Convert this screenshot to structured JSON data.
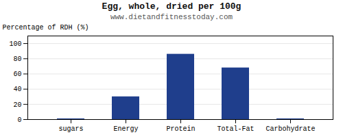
{
  "chart_data": {
    "type": "bar",
    "title": "Egg, whole, dried per 100g",
    "subtitle": "www.dietandfitnesstoday.com",
    "categories": [
      "sugars",
      "Energy",
      "Protein",
      "Total-Fat",
      "Carbohydrate"
    ],
    "values": [
      1,
      30,
      86,
      68,
      1
    ],
    "color": "#1F3E8C",
    "ylabel": "Percentage of RDH (%)",
    "ylim": [
      0,
      110
    ],
    "yticks": [
      0,
      20,
      40,
      60,
      80,
      100
    ],
    "grid": true
  }
}
